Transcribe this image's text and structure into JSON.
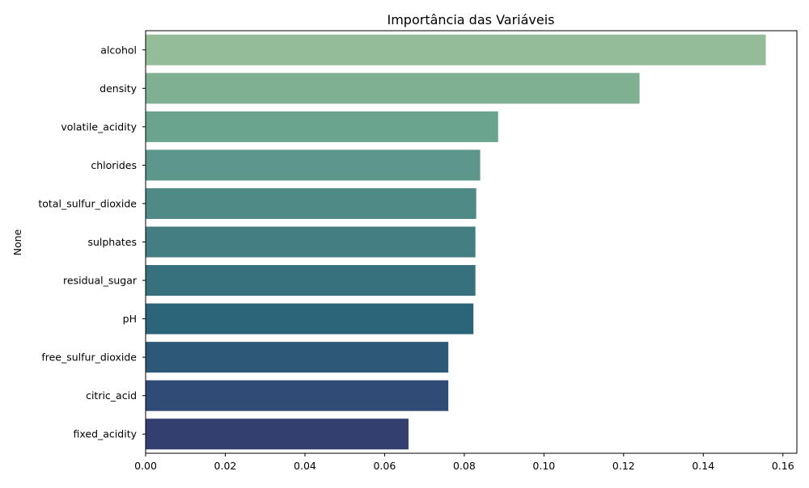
{
  "chart_data": {
    "type": "bar",
    "orientation": "horizontal",
    "title": "Importância das Variáveis",
    "xlabel": "",
    "ylabel": "None",
    "categories": [
      "alcohol",
      "density",
      "volatile_acidity",
      "chlorides",
      "total_sulfur_dioxide",
      "sulphates",
      "residual_sugar",
      "pH",
      "free_sulfur_dioxide",
      "citric_acid",
      "fixed_acidity"
    ],
    "values": [
      0.1557,
      0.124,
      0.0885,
      0.084,
      0.083,
      0.0828,
      0.0828,
      0.0823,
      0.076,
      0.076,
      0.066
    ],
    "colors": [
      "#95bc98",
      "#7fb092",
      "#6aa48f",
      "#5d978b",
      "#508a87",
      "#447d82",
      "#38717e",
      "#2c647a",
      "#2d5878",
      "#304c76",
      "#323f6f"
    ],
    "xlim": [
      0,
      0.1635
    ],
    "xticks": [
      0.0,
      0.02,
      0.04,
      0.06,
      0.08,
      0.1,
      0.12,
      0.14,
      0.16
    ],
    "xtick_labels": [
      "0.00",
      "0.02",
      "0.04",
      "0.06",
      "0.08",
      "0.10",
      "0.12",
      "0.14",
      "0.16"
    ],
    "grid": false,
    "legend": "none"
  }
}
